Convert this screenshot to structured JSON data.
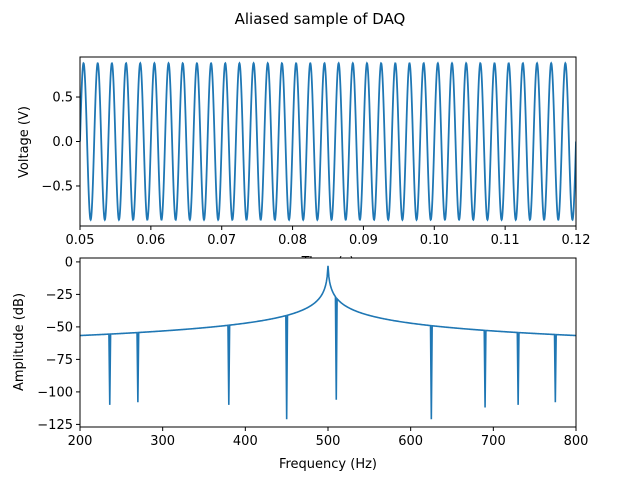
{
  "title": "Aliased sample of DAQ",
  "colors": {
    "line": "#1f77b4",
    "axes": "#000000",
    "background": "#ffffff"
  },
  "chart_data": [
    {
      "type": "line",
      "name": "top",
      "xlabel": "Time (s)",
      "ylabel": "Voltage (V)",
      "xlim": [
        0.05,
        0.12
      ],
      "ylim": [
        -0.95,
        0.95
      ],
      "xticks": [
        0.05,
        0.06,
        0.07,
        0.08,
        0.09,
        0.1,
        0.11,
        0.12
      ],
      "xtick_labels": [
        "0.05",
        "0.06",
        "0.07",
        "0.08",
        "0.09",
        "0.10",
        "0.11",
        "0.12"
      ],
      "yticks": [
        0.5,
        0.0,
        -0.5
      ],
      "ytick_labels": [
        "0.5",
        "0.0",
        "−0.5"
      ],
      "signal": {
        "kind": "sine",
        "frequency_hz": 500,
        "amplitude_v": 0.88,
        "x_start": 0.05,
        "x_end": 0.12,
        "samples": 2000
      }
    },
    {
      "type": "line",
      "name": "bottom",
      "xlabel": "Frequency (Hz)",
      "ylabel": "Amplitude (dB)",
      "xlim": [
        200,
        800
      ],
      "ylim": [
        -127,
        3
      ],
      "xticks": [
        200,
        300,
        400,
        500,
        600,
        700,
        800
      ],
      "xtick_labels": [
        "200",
        "300",
        "400",
        "500",
        "600",
        "700",
        "800"
      ],
      "yticks": [
        0,
        -25,
        -50,
        -75,
        -100,
        -125
      ],
      "ytick_labels": [
        "0",
        "−25",
        "−50",
        "−75",
        "−100",
        "−125"
      ],
      "spectrum": {
        "x_start": 200,
        "x_end": 800,
        "points": 600,
        "noise_floor_db": -96,
        "noise_spread_db": 5,
        "peak_hz": 500,
        "peak_db": -3,
        "notable_dips": [
          {
            "x": 236,
            "y": -110
          },
          {
            "x": 270,
            "y": -108
          },
          {
            "x": 380,
            "y": -110
          },
          {
            "x": 450,
            "y": -121
          },
          {
            "x": 510,
            "y": -106
          },
          {
            "x": 625,
            "y": -121
          },
          {
            "x": 690,
            "y": -112
          },
          {
            "x": 730,
            "y": -110
          },
          {
            "x": 775,
            "y": -108
          }
        ]
      }
    }
  ]
}
